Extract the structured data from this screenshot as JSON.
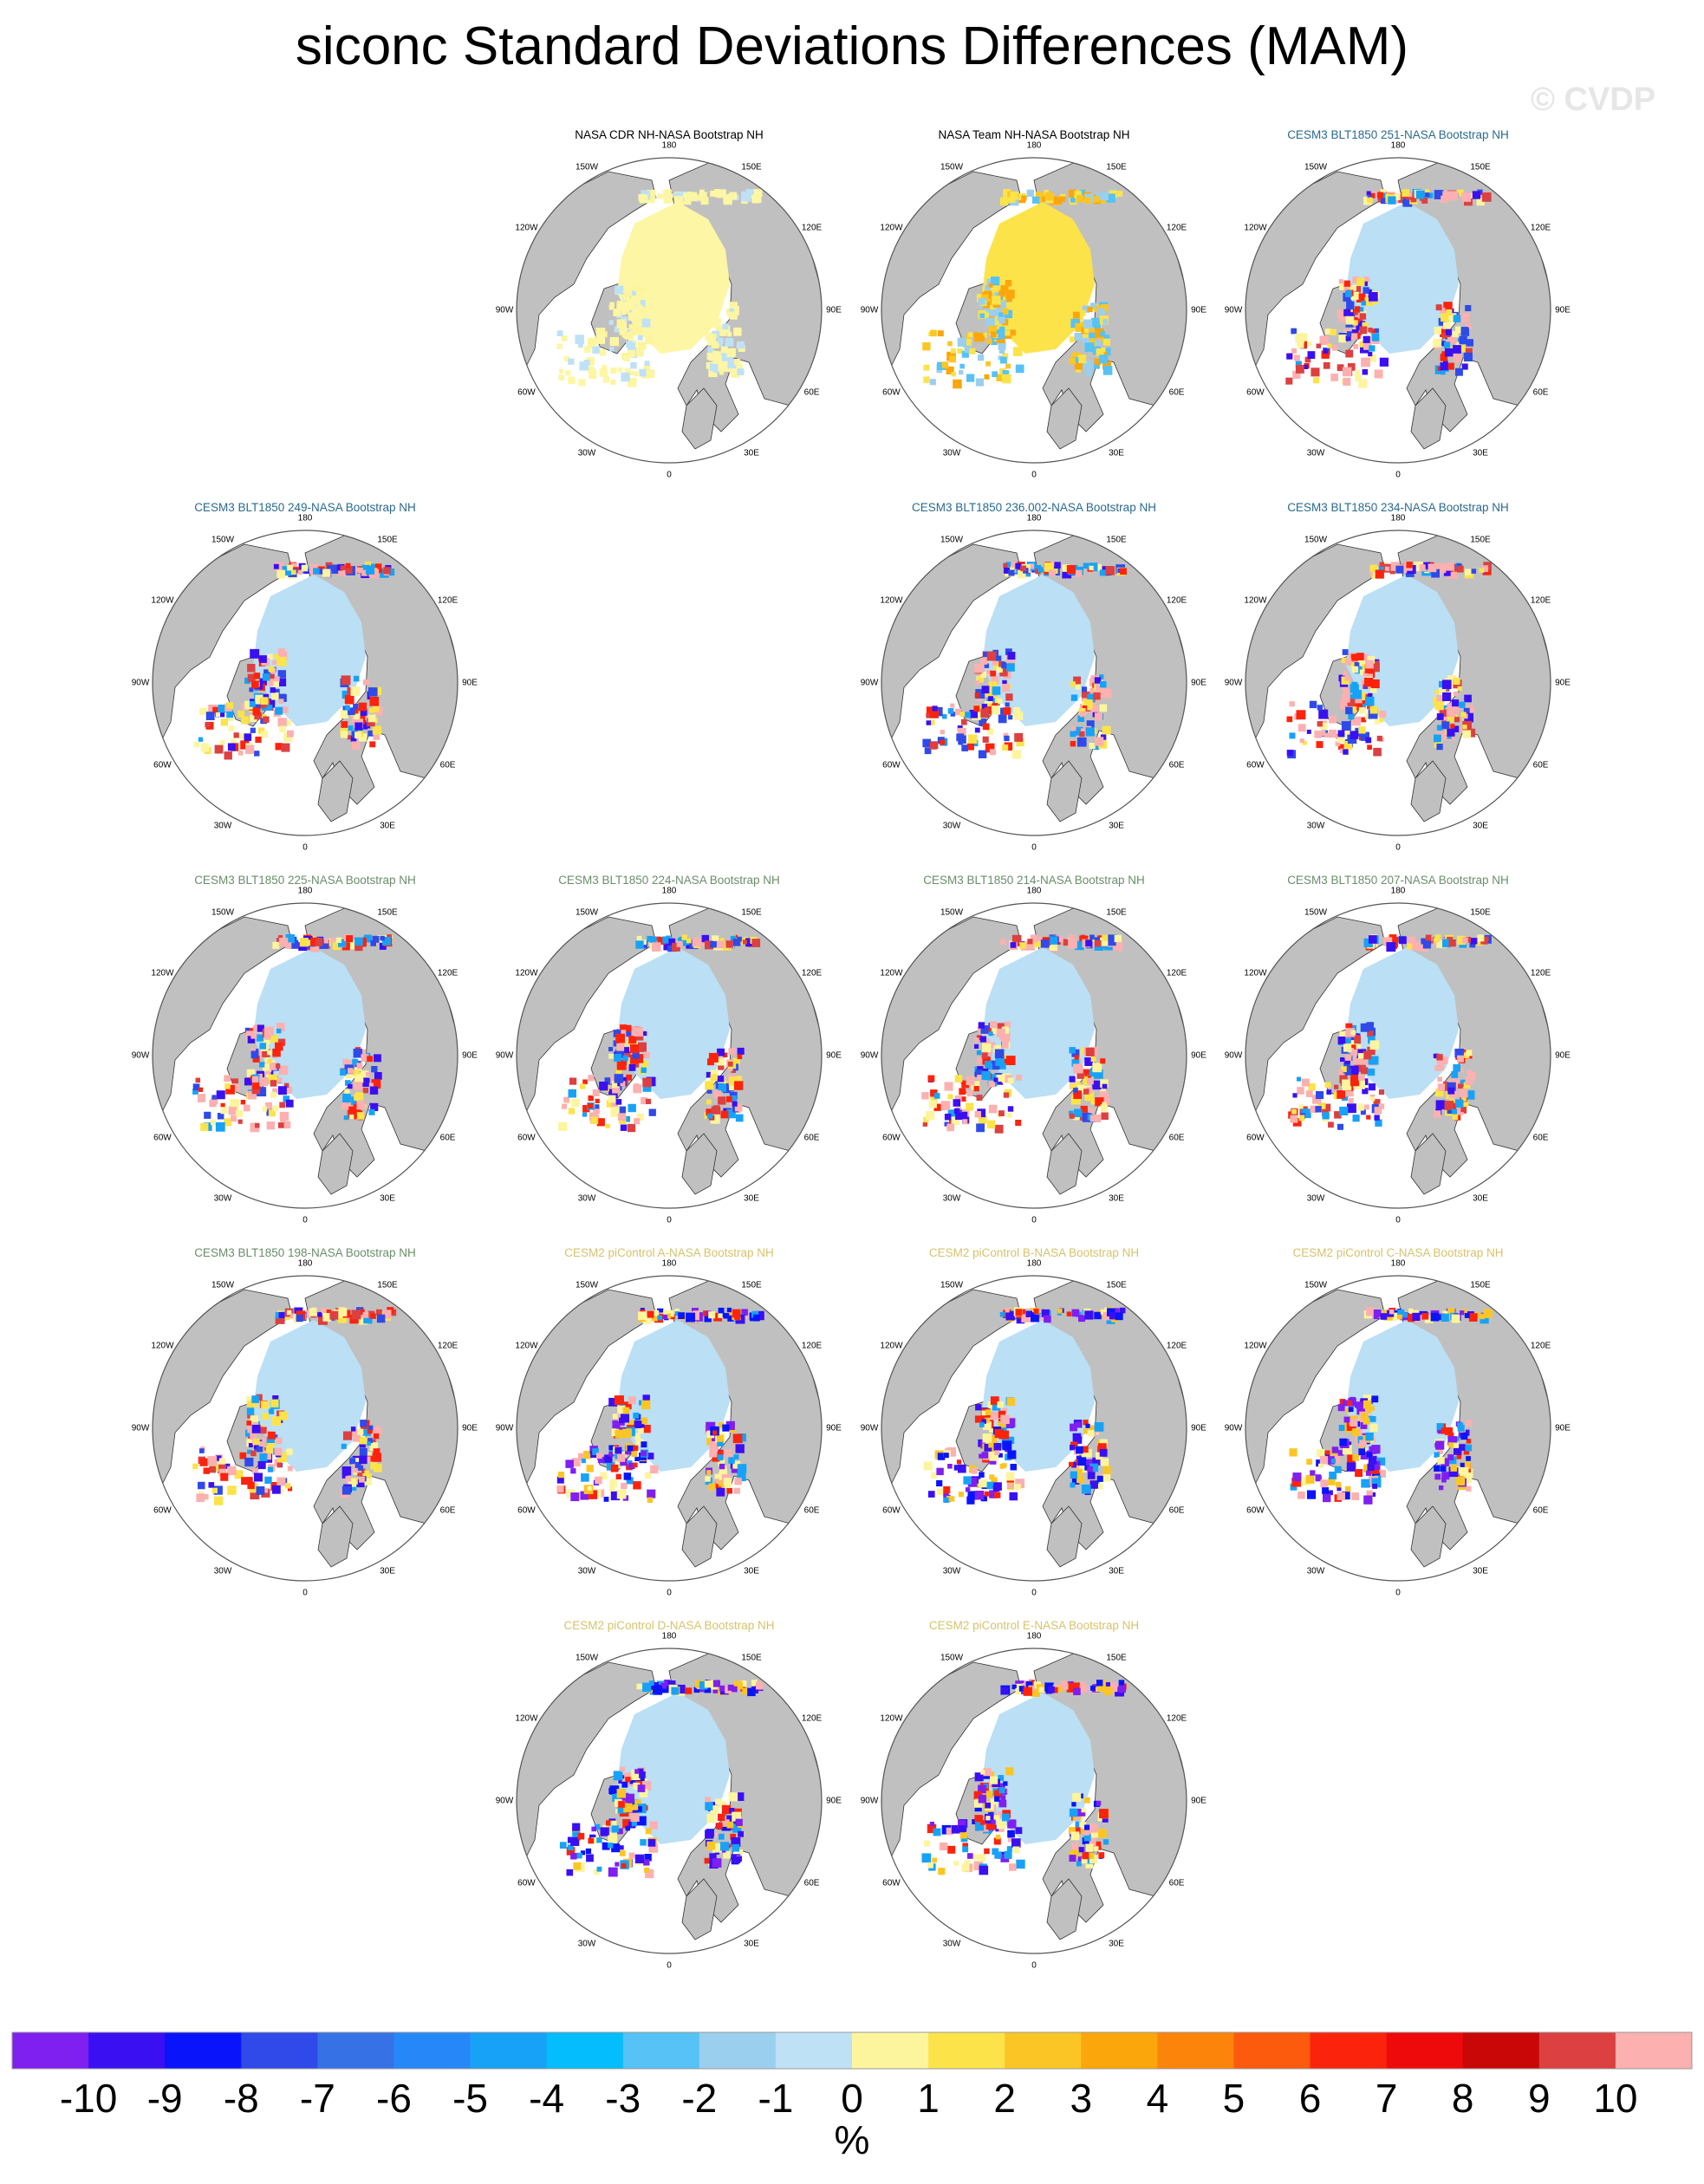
{
  "title": "siconc Standard Deviations Differences (MAM)",
  "watermark": "© CVDP",
  "longitude_labels": [
    "180",
    "150E",
    "120E",
    "90E",
    "60E",
    "30E",
    "0",
    "30W",
    "60W",
    "90W",
    "120W",
    "150W"
  ],
  "colors": {
    "land": "#c0c0c0",
    "ocean": "#ffffff",
    "ice_pale_blue": "#bbdff4",
    "ice_pale_yellow": "#fdf6a4",
    "title_black": "#000000",
    "title_teal": "#2a6a8e",
    "title_green": "#6a8e6a",
    "title_gold": "#d6c36c"
  },
  "chart_data": {
    "type": "heatmap",
    "title": "siconc Standard Deviations Differences (MAM)",
    "projection": "north polar stereographic",
    "panels": [
      {
        "name": "NASA CDR NH-NASA Bootstrap NH",
        "row": 0,
        "col": 1,
        "title_color": "black",
        "style": "cdr"
      },
      {
        "name": "NASA Team NH-NASA Bootstrap NH",
        "row": 0,
        "col": 2,
        "title_color": "black",
        "style": "team"
      },
      {
        "name": "CESM3 BLT1850 251-NASA Bootstrap NH",
        "row": 0,
        "col": 3,
        "title_color": "teal",
        "style": "cesm3"
      },
      {
        "name": "CESM3 BLT1850 249-NASA Bootstrap NH",
        "row": 1,
        "col": 0,
        "title_color": "teal",
        "style": "cesm3"
      },
      {
        "name": "CESM3 BLT1850 236.002-NASA Bootstrap NH",
        "row": 1,
        "col": 2,
        "title_color": "teal",
        "style": "cesm3"
      },
      {
        "name": "CESM3 BLT1850 234-NASA Bootstrap NH",
        "row": 1,
        "col": 3,
        "title_color": "teal",
        "style": "cesm3"
      },
      {
        "name": "CESM3 BLT1850 225-NASA Bootstrap NH",
        "row": 2,
        "col": 0,
        "title_color": "green",
        "style": "cesm3"
      },
      {
        "name": "CESM3 BLT1850 224-NASA Bootstrap NH",
        "row": 2,
        "col": 1,
        "title_color": "green",
        "style": "cesm3"
      },
      {
        "name": "CESM3 BLT1850 214-NASA Bootstrap NH",
        "row": 2,
        "col": 2,
        "title_color": "green",
        "style": "cesm3"
      },
      {
        "name": "CESM3 BLT1850 207-NASA Bootstrap NH",
        "row": 2,
        "col": 3,
        "title_color": "green",
        "style": "cesm3"
      },
      {
        "name": "CESM3 BLT1850 198-NASA Bootstrap NH",
        "row": 3,
        "col": 0,
        "title_color": "green",
        "style": "cesm3"
      },
      {
        "name": "CESM2 piControl A-NASA Bootstrap NH",
        "row": 3,
        "col": 1,
        "title_color": "gold",
        "style": "cesm2"
      },
      {
        "name": "CESM2 piControl B-NASA Bootstrap NH",
        "row": 3,
        "col": 2,
        "title_color": "gold",
        "style": "cesm2"
      },
      {
        "name": "CESM2 piControl C-NASA Bootstrap NH",
        "row": 3,
        "col": 3,
        "title_color": "gold",
        "style": "cesm2"
      },
      {
        "name": "CESM2 piControl D-NASA Bootstrap NH",
        "row": 4,
        "col": 1,
        "title_color": "gold",
        "style": "cesm2"
      },
      {
        "name": "CESM2 piControl E-NASA Bootstrap NH",
        "row": 4,
        "col": 2,
        "title_color": "gold",
        "style": "cesm2"
      }
    ],
    "colorbar": {
      "label": "%",
      "tick_labels": [
        "-10",
        "-9",
        "-8",
        "-7",
        "-6",
        "-5",
        "-4",
        "-3",
        "-2",
        "-1",
        "0",
        "1",
        "2",
        "3",
        "4",
        "5",
        "6",
        "7",
        "8",
        "9",
        "10"
      ],
      "colors": [
        "#7f1ff0",
        "#3a10f2",
        "#0a14fb",
        "#2f4ae9",
        "#3671e6",
        "#2688f8",
        "#18a2f7",
        "#04bdfd",
        "#56c2f5",
        "#9bcfee",
        "#bfe1f6",
        "#fdf59e",
        "#fde34a",
        "#fbc625",
        "#fba60a",
        "#fc840b",
        "#fc5a0c",
        "#fc230c",
        "#ee0a0a",
        "#c90707",
        "#dc4040",
        "#fcb0b0"
      ]
    }
  }
}
